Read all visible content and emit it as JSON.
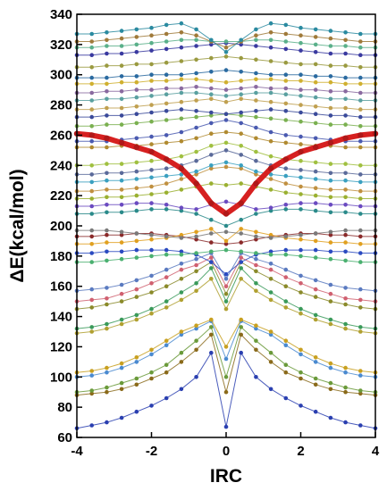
{
  "chart_data": {
    "type": "line",
    "title": "",
    "xlabel": "IRC",
    "ylabel": "ΔE(kcal/mol)",
    "xlim": [
      -4,
      4
    ],
    "ylim": [
      60,
      340
    ],
    "x_ticks": [
      -4,
      -2,
      0,
      2,
      4
    ],
    "y_ticks": [
      60,
      80,
      100,
      120,
      140,
      160,
      180,
      200,
      220,
      240,
      260,
      280,
      300,
      320,
      340
    ],
    "x": [
      -4,
      -3.6,
      -3.2,
      -2.8,
      -2.4,
      -2.0,
      -1.6,
      -1.2,
      -0.8,
      -0.4,
      0,
      0.4,
      0.8,
      1.2,
      1.6,
      2.0,
      2.4,
      2.8,
      3.2,
      3.6,
      4
    ],
    "highlight_series": {
      "color": "#d62020",
      "values": [
        261,
        260,
        258,
        255,
        252,
        249,
        244,
        238,
        228,
        215,
        208,
        215,
        228,
        238,
        244,
        249,
        252,
        255,
        258,
        260,
        261
      ]
    },
    "series": [
      {
        "color": "#2a3fb0",
        "values": [
          66,
          68,
          70,
          73,
          77,
          81,
          86,
          92,
          100,
          116,
          67,
          116,
          100,
          92,
          86,
          81,
          77,
          73,
          70,
          68,
          66
        ]
      },
      {
        "color": "#8a6a1a",
        "values": [
          88,
          89,
          90,
          92,
          95,
          99,
          103,
          110,
          118,
          128,
          90,
          128,
          118,
          110,
          103,
          99,
          95,
          92,
          90,
          89,
          88
        ]
      },
      {
        "color": "#6a9a3a",
        "values": [
          90,
          91,
          93,
          96,
          99,
          103,
          108,
          116,
          124,
          133,
          100,
          133,
          124,
          116,
          108,
          103,
          99,
          96,
          93,
          91,
          90
        ]
      },
      {
        "color": "#4a8ad0",
        "values": [
          100,
          101,
          103,
          106,
          110,
          115,
          121,
          128,
          132,
          137,
          112,
          137,
          132,
          128,
          121,
          115,
          110,
          106,
          103,
          101,
          100
        ]
      },
      {
        "color": "#c8a020",
        "values": [
          103,
          104,
          106,
          109,
          113,
          118,
          124,
          130,
          134,
          138,
          120,
          138,
          134,
          130,
          124,
          118,
          113,
          109,
          106,
          104,
          103
        ]
      },
      {
        "color": "#b0a030",
        "values": [
          129,
          130,
          132,
          135,
          138,
          142,
          146,
          151,
          157,
          165,
          145,
          165,
          157,
          151,
          146,
          142,
          138,
          135,
          132,
          130,
          129
        ]
      },
      {
        "color": "#3a9a5a",
        "values": [
          132,
          133,
          135,
          138,
          141,
          145,
          150,
          156,
          162,
          172,
          150,
          172,
          162,
          156,
          150,
          145,
          141,
          138,
          135,
          133,
          132
        ]
      },
      {
        "color": "#8a8a2a",
        "values": [
          145,
          146,
          148,
          150,
          153,
          156,
          160,
          165,
          170,
          176,
          155,
          176,
          170,
          165,
          160,
          156,
          153,
          150,
          148,
          146,
          145
        ]
      },
      {
        "color": "#d06070",
        "values": [
          150,
          151,
          152,
          155,
          158,
          162,
          166,
          171,
          174,
          179,
          160,
          179,
          174,
          171,
          166,
          162,
          158,
          155,
          152,
          151,
          150
        ]
      },
      {
        "color": "#5a7ac0",
        "values": [
          157,
          158,
          159,
          161,
          164,
          167,
          171,
          175,
          178,
          182,
          165,
          182,
          178,
          175,
          171,
          167,
          164,
          161,
          159,
          158,
          157
        ]
      },
      {
        "color": "#2a4ac0",
        "values": [
          182,
          182,
          183,
          183,
          184,
          184,
          184,
          183,
          181,
          176,
          168,
          176,
          181,
          183,
          184,
          184,
          184,
          183,
          183,
          182,
          182
        ]
      },
      {
        "color": "#4ab070",
        "values": [
          176,
          176,
          177,
          178,
          179,
          180,
          181,
          181,
          182,
          183,
          184,
          183,
          182,
          181,
          181,
          180,
          179,
          178,
          177,
          176,
          176
        ]
      },
      {
        "color": "#8a2a2a",
        "values": [
          193,
          193,
          194,
          194,
          195,
          195,
          194,
          193,
          191,
          189,
          188,
          189,
          191,
          193,
          194,
          195,
          195,
          194,
          194,
          193,
          193
        ]
      },
      {
        "color": "#e0a020",
        "values": [
          188,
          188,
          189,
          189,
          190,
          191,
          192,
          194,
          196,
          198,
          190,
          198,
          196,
          194,
          192,
          191,
          190,
          189,
          189,
          188,
          188
        ]
      },
      {
        "color": "#7a7a7a",
        "values": [
          197,
          197,
          197,
          196,
          195,
          194,
          193,
          192,
          193,
          195,
          196,
          195,
          193,
          192,
          193,
          194,
          195,
          196,
          197,
          197,
          197
        ]
      },
      {
        "color": "#2a8a8a",
        "values": [
          208,
          208,
          209,
          209,
          210,
          211,
          211,
          210,
          208,
          204,
          200,
          204,
          208,
          210,
          211,
          211,
          210,
          209,
          209,
          208,
          208
        ]
      },
      {
        "color": "#6a4ac0",
        "values": [
          213,
          213,
          214,
          214,
          215,
          215,
          214,
          212,
          211,
          214,
          216,
          214,
          211,
          212,
          214,
          215,
          215,
          214,
          214,
          213,
          213
        ]
      },
      {
        "color": "#9ab030",
        "values": [
          218,
          218,
          219,
          219,
          220,
          221,
          222,
          224,
          226,
          228,
          227,
          228,
          226,
          224,
          222,
          221,
          220,
          219,
          219,
          218,
          218
        ]
      },
      {
        "color": "#c09040",
        "values": [
          223,
          223,
          224,
          224,
          225,
          226,
          228,
          231,
          234,
          238,
          239,
          238,
          234,
          231,
          228,
          226,
          225,
          224,
          224,
          223,
          223
        ]
      },
      {
        "color": "#3aa0c0",
        "values": [
          229,
          229,
          230,
          230,
          231,
          232,
          233,
          234,
          236,
          240,
          242,
          240,
          236,
          234,
          233,
          232,
          231,
          230,
          230,
          229,
          229
        ]
      },
      {
        "color": "#5a6a9a",
        "values": [
          234,
          234,
          235,
          235,
          236,
          237,
          238,
          240,
          243,
          247,
          250,
          247,
          243,
          240,
          238,
          237,
          236,
          235,
          235,
          234,
          234
        ]
      },
      {
        "color": "#a0c040",
        "values": [
          240,
          240,
          241,
          241,
          242,
          243,
          244,
          246,
          249,
          253,
          255,
          253,
          249,
          246,
          244,
          243,
          242,
          241,
          241,
          240,
          240
        ]
      },
      {
        "color": "#b08a30",
        "values": [
          252,
          252,
          252,
          253,
          253,
          254,
          255,
          256,
          258,
          261,
          262,
          261,
          258,
          256,
          255,
          254,
          253,
          253,
          252,
          252,
          252
        ]
      },
      {
        "color": "#4a5ab0",
        "values": [
          256,
          256,
          256,
          257,
          258,
          259,
          260,
          262,
          265,
          268,
          270,
          268,
          265,
          262,
          260,
          259,
          258,
          257,
          256,
          256,
          256
        ]
      },
      {
        "color": "#7ab050",
        "values": [
          266,
          266,
          267,
          267,
          268,
          269,
          270,
          271,
          272,
          273,
          274,
          273,
          272,
          271,
          270,
          269,
          268,
          267,
          267,
          266,
          266
        ]
      },
      {
        "color": "#3a4a9a",
        "values": [
          272,
          272,
          273,
          273,
          274,
          275,
          276,
          277,
          276,
          275,
          274,
          275,
          276,
          277,
          276,
          275,
          274,
          273,
          273,
          272,
          272
        ]
      },
      {
        "color": "#c0a050",
        "values": [
          277,
          277,
          278,
          278,
          279,
          280,
          281,
          282,
          283,
          284,
          282,
          284,
          283,
          282,
          281,
          280,
          279,
          278,
          278,
          277,
          277
        ]
      },
      {
        "color": "#5aa0a0",
        "values": [
          283,
          283,
          284,
          284,
          285,
          286,
          287,
          288,
          288,
          287,
          286,
          287,
          288,
          288,
          287,
          286,
          285,
          284,
          284,
          283,
          283
        ]
      },
      {
        "color": "#8a6aa0",
        "values": [
          288,
          288,
          289,
          289,
          290,
          290,
          291,
          291,
          292,
          291,
          290,
          291,
          292,
          291,
          291,
          290,
          290,
          289,
          289,
          288,
          288
        ]
      },
      {
        "color": "#d0b030",
        "values": [
          294,
          294,
          294,
          295,
          295,
          296,
          296,
          297,
          297,
          296,
          295,
          296,
          297,
          297,
          296,
          296,
          295,
          295,
          294,
          294,
          294
        ]
      },
      {
        "color": "#2a6aa0",
        "values": [
          298,
          298,
          298,
          299,
          299,
          300,
          300,
          300,
          301,
          302,
          303,
          302,
          301,
          300,
          300,
          300,
          299,
          299,
          298,
          298,
          298
        ]
      },
      {
        "color": "#9a9a40",
        "values": [
          305,
          305,
          306,
          306,
          307,
          307,
          308,
          309,
          310,
          311,
          312,
          311,
          310,
          309,
          308,
          307,
          307,
          306,
          306,
          305,
          305
        ]
      },
      {
        "color": "#3a3aa0",
        "values": [
          313,
          313,
          314,
          314,
          315,
          316,
          317,
          318,
          319,
          320,
          321,
          320,
          319,
          318,
          317,
          316,
          315,
          314,
          314,
          313,
          313
        ]
      },
      {
        "color": "#5ab08a",
        "values": [
          318,
          318,
          319,
          319,
          320,
          321,
          322,
          323,
          323,
          322,
          322,
          322,
          323,
          323,
          322,
          321,
          320,
          319,
          319,
          318,
          318
        ]
      },
      {
        "color": "#a07a3a",
        "values": [
          322,
          322,
          323,
          324,
          325,
          326,
          327,
          328,
          326,
          322,
          318,
          322,
          326,
          328,
          327,
          326,
          325,
          324,
          323,
          322,
          322
        ]
      },
      {
        "color": "#2a8aa0",
        "values": [
          327,
          327,
          328,
          329,
          330,
          331,
          333,
          334,
          330,
          323,
          315,
          323,
          330,
          334,
          333,
          331,
          330,
          329,
          328,
          327,
          327
        ]
      }
    ]
  }
}
